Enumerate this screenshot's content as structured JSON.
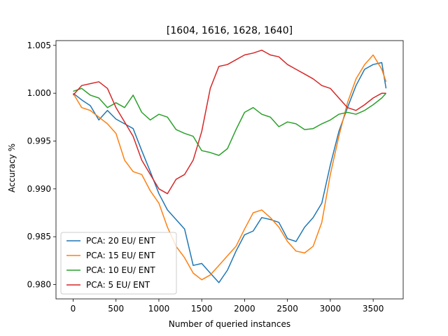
{
  "chart_data": {
    "type": "line",
    "title": "[1604, 1616, 1628, 1640]",
    "xlabel": "Number of queried instances",
    "ylabel": "Accuracy %",
    "xlim": [
      -200,
      3850
    ],
    "ylim": [
      0.9785,
      1.0055
    ],
    "xticks": [
      0,
      500,
      1000,
      1500,
      2000,
      2500,
      3000,
      3500
    ],
    "yticks": [
      0.98,
      0.985,
      0.99,
      0.995,
      1.0,
      1.005
    ],
    "ytick_labels": [
      "0.980",
      "0.985",
      "0.990",
      "0.995",
      "1.000",
      "1.005"
    ],
    "legend_position": "lower-left",
    "series": [
      {
        "name": "PCA: 20 EU/ ENT",
        "color": "#1f77b4",
        "x": [
          0,
          100,
          200,
          300,
          400,
          500,
          600,
          700,
          800,
          900,
          1000,
          1100,
          1200,
          1300,
          1400,
          1500,
          1600,
          1700,
          1800,
          1900,
          2000,
          2100,
          2200,
          2300,
          2400,
          2500,
          2600,
          2700,
          2800,
          2900,
          3000,
          3100,
          3200,
          3300,
          3400,
          3500,
          3600,
          3650
        ],
        "y": [
          1.0,
          0.9993,
          0.9987,
          0.9972,
          0.9982,
          0.9973,
          0.9968,
          0.9963,
          0.994,
          0.9918,
          0.9895,
          0.9878,
          0.9868,
          0.9858,
          0.982,
          0.9822,
          0.9812,
          0.9802,
          0.9815,
          0.9835,
          0.9852,
          0.9856,
          0.987,
          0.9868,
          0.9865,
          0.9848,
          0.9845,
          0.986,
          0.987,
          0.9885,
          0.9925,
          0.996,
          0.9985,
          1.0008,
          1.0025,
          1.003,
          1.0032,
          1.0005
        ]
      },
      {
        "name": "PCA: 15 EU/ ENT",
        "color": "#ff7f0e",
        "x": [
          0,
          100,
          200,
          300,
          400,
          500,
          600,
          700,
          800,
          900,
          1000,
          1100,
          1200,
          1300,
          1400,
          1500,
          1600,
          1700,
          1800,
          1900,
          2000,
          2100,
          2200,
          2300,
          2400,
          2500,
          2600,
          2700,
          2800,
          2900,
          3000,
          3100,
          3200,
          3300,
          3400,
          3500,
          3600,
          3650
        ],
        "y": [
          1.0,
          0.9985,
          0.9982,
          0.9975,
          0.9968,
          0.9958,
          0.993,
          0.9918,
          0.9915,
          0.9898,
          0.9885,
          0.986,
          0.984,
          0.9828,
          0.9812,
          0.9805,
          0.981,
          0.982,
          0.983,
          0.984,
          0.9858,
          0.9875,
          0.9878,
          0.987,
          0.986,
          0.9845,
          0.9835,
          0.9833,
          0.984,
          0.9865,
          0.9915,
          0.9955,
          0.999,
          1.0015,
          1.003,
          1.004,
          1.0025,
          1.0012
        ]
      },
      {
        "name": "PCA: 10 EU/ ENT",
        "color": "#2ca02c",
        "x": [
          0,
          100,
          200,
          300,
          400,
          500,
          600,
          700,
          800,
          900,
          1000,
          1100,
          1200,
          1300,
          1400,
          1500,
          1600,
          1700,
          1800,
          1900,
          2000,
          2100,
          2200,
          2300,
          2400,
          2500,
          2600,
          2700,
          2800,
          2900,
          3000,
          3100,
          3200,
          3300,
          3400,
          3500,
          3600,
          3650
        ],
        "y": [
          1.0002,
          1.0005,
          0.9998,
          0.9995,
          0.9985,
          0.999,
          0.9985,
          0.9998,
          0.998,
          0.9972,
          0.9978,
          0.9975,
          0.9962,
          0.9958,
          0.9955,
          0.994,
          0.9938,
          0.9935,
          0.9942,
          0.9962,
          0.998,
          0.9985,
          0.9978,
          0.9975,
          0.9965,
          0.997,
          0.9968,
          0.9962,
          0.9963,
          0.9968,
          0.9972,
          0.9978,
          0.998,
          0.9978,
          0.9982,
          0.9988,
          0.9995,
          1.0
        ]
      },
      {
        "name": "PCA: 5 EU/ ENT",
        "color": "#d62728",
        "x": [
          0,
          100,
          200,
          300,
          400,
          500,
          600,
          700,
          800,
          900,
          1000,
          1100,
          1200,
          1300,
          1400,
          1500,
          1600,
          1700,
          1800,
          1900,
          2000,
          2100,
          2200,
          2300,
          2400,
          2500,
          2600,
          2700,
          2800,
          2900,
          3000,
          3100,
          3200,
          3300,
          3400,
          3500,
          3600,
          3650
        ],
        "y": [
          0.9998,
          1.0008,
          1.001,
          1.0012,
          1.0005,
          0.9985,
          0.997,
          0.9955,
          0.993,
          0.9915,
          0.99,
          0.9895,
          0.991,
          0.9915,
          0.993,
          0.996,
          1.0005,
          1.0028,
          1.003,
          1.0035,
          1.004,
          1.0042,
          1.0045,
          1.004,
          1.0038,
          1.003,
          1.0025,
          1.002,
          1.0015,
          1.0008,
          1.0005,
          0.9995,
          0.9985,
          0.9982,
          0.9988,
          0.9995,
          1.0,
          1.0
        ]
      }
    ]
  }
}
